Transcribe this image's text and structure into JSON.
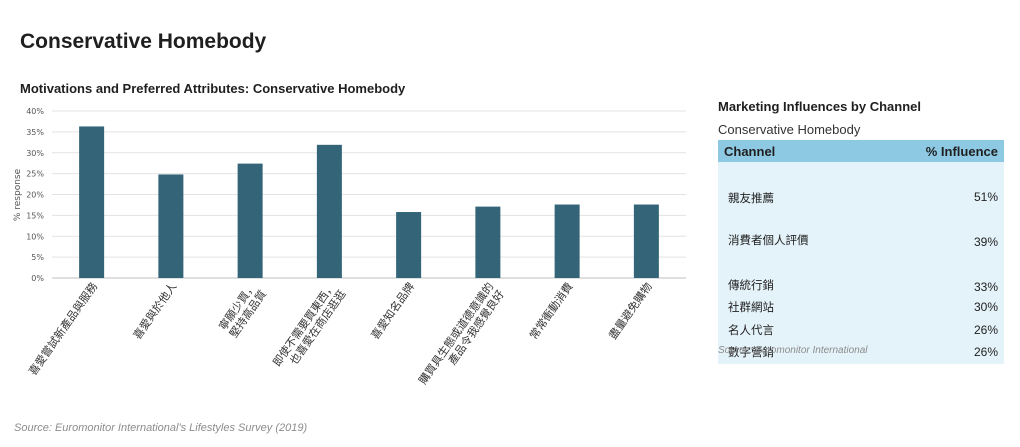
{
  "page": {
    "title": "Conservative Homebody",
    "source": "Source: Euromonitor International's Lifestyles Survey (2019)"
  },
  "chart_data": {
    "type": "bar",
    "title": "Motivations and Preferred Attributes: Conservative Homebody",
    "xlabel": "",
    "ylabel": "% response",
    "ylim": [
      0,
      40
    ],
    "y_ticks": [
      "0%",
      "5%",
      "10%",
      "15%",
      "20%",
      "25%",
      "30%",
      "35%",
      "40%"
    ],
    "categories": [
      "喜愛嘗試新產品與服務",
      "喜愛與於他人",
      "寧願少買，堅持高品質",
      "即使不需要買東西，也喜愛在商店逛逛",
      "喜愛知名品牌",
      "購買具生態或道德意識的產品令我感覺良好",
      "常常衝動消費",
      "盡量避免購物"
    ],
    "values": [
      36.3,
      24.8,
      27.4,
      31.9,
      15.8,
      17.1,
      17.6,
      17.6
    ],
    "grid": true,
    "bar_color": "#336478"
  },
  "table": {
    "title": "Marketing Influences by Channel",
    "subtitle": "Conservative Homebody",
    "headers": [
      "Channel",
      "% Influence"
    ],
    "rows": [
      {
        "channel": "親友推薦",
        "value": "51%"
      },
      {
        "channel": "消費者個人評價",
        "value": "39%"
      },
      {
        "channel": "傳統行銷",
        "value": "33%"
      },
      {
        "channel": "社群網站",
        "value": "30%"
      },
      {
        "channel": "名人代言",
        "value": "26%"
      },
      {
        "channel": "數字營銷",
        "value": "26%"
      }
    ],
    "source": "Source: Euromonitor International"
  }
}
